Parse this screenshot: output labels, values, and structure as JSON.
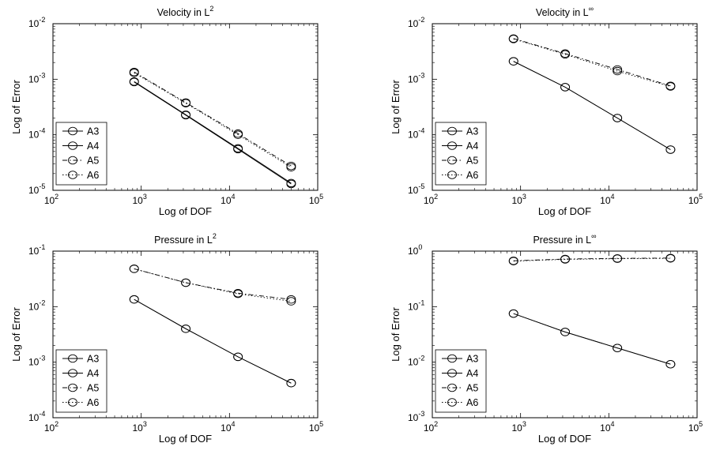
{
  "chart_data": [
    {
      "type": "line",
      "title": "Velocity in L",
      "title_sup": "2",
      "xlabel": "Log of DOF",
      "ylabel": "Log of Error",
      "xscale": "log",
      "yscale": "log",
      "xlim": [
        100,
        100000
      ],
      "ylim": [
        1e-05,
        0.01
      ],
      "x_ticks": [
        {
          "base": "10",
          "exp": "2"
        },
        {
          "base": "10",
          "exp": "3"
        },
        {
          "base": "10",
          "exp": "4"
        },
        {
          "base": "10",
          "exp": "5"
        }
      ],
      "y_ticks": [
        {
          "base": "10",
          "exp": "-5"
        },
        {
          "base": "10",
          "exp": "-4"
        },
        {
          "base": "10",
          "exp": "-3"
        },
        {
          "base": "10",
          "exp": "-2"
        }
      ],
      "legend_position": "lower-left",
      "x": [
        832,
        3200,
        12500,
        50000
      ],
      "series": [
        {
          "name": "A3",
          "style": "solid",
          "values": [
            0.00091,
            0.00023,
            5.7e-05,
            1.35e-05
          ]
        },
        {
          "name": "A4",
          "style": "solid",
          "values": [
            0.00089,
            0.000225,
            5.5e-05,
            1.3e-05
          ]
        },
        {
          "name": "A5",
          "style": "dashdot",
          "values": [
            0.00135,
            0.00038,
            0.000105,
            2.75e-05
          ]
        },
        {
          "name": "A6",
          "style": "dotted",
          "values": [
            0.0013,
            0.00037,
            0.0001,
            2.6e-05
          ]
        }
      ]
    },
    {
      "type": "line",
      "title": "Velocity in L",
      "title_sup": "∞",
      "xlabel": "Log of DOF",
      "ylabel": "Log of Error",
      "xscale": "log",
      "yscale": "log",
      "xlim": [
        100,
        100000
      ],
      "ylim": [
        1e-05,
        0.01
      ],
      "x_ticks": [
        {
          "base": "10",
          "exp": "2"
        },
        {
          "base": "10",
          "exp": "3"
        },
        {
          "base": "10",
          "exp": "4"
        },
        {
          "base": "10",
          "exp": "5"
        }
      ],
      "y_ticks": [
        {
          "base": "10",
          "exp": "-5"
        },
        {
          "base": "10",
          "exp": "-4"
        },
        {
          "base": "10",
          "exp": "-3"
        },
        {
          "base": "10",
          "exp": "-2"
        }
      ],
      "legend_position": "lower-left",
      "x": [
        832,
        3200,
        12500,
        50000
      ],
      "series": [
        {
          "name": "A3",
          "style": "solid",
          "values": [
            0.0021,
            0.00072,
            0.0002,
            5.4e-05
          ]
        },
        {
          "name": "A4",
          "style": "solid",
          "values": [
            0.0021,
            0.00072,
            0.0002,
            5.4e-05
          ]
        },
        {
          "name": "A5",
          "style": "dashdot",
          "values": [
            0.0054,
            0.0029,
            0.0015,
            0.00076
          ]
        },
        {
          "name": "A6",
          "style": "dotted",
          "values": [
            0.0053,
            0.0028,
            0.0014,
            0.00074
          ]
        }
      ]
    },
    {
      "type": "line",
      "title": "Pressure in L",
      "title_sup": "2",
      "xlabel": "Log of DOF",
      "ylabel": "Log of Error",
      "xscale": "log",
      "yscale": "log",
      "xlim": [
        100,
        100000
      ],
      "ylim": [
        0.0001,
        0.1
      ],
      "x_ticks": [
        {
          "base": "10",
          "exp": "2"
        },
        {
          "base": "10",
          "exp": "3"
        },
        {
          "base": "10",
          "exp": "4"
        },
        {
          "base": "10",
          "exp": "5"
        }
      ],
      "y_ticks": [
        {
          "base": "10",
          "exp": "-4"
        },
        {
          "base": "10",
          "exp": "-3"
        },
        {
          "base": "10",
          "exp": "-2"
        },
        {
          "base": "10",
          "exp": "-1"
        }
      ],
      "legend_position": "lower-left",
      "x": [
        832,
        3200,
        12500,
        50000
      ],
      "series": [
        {
          "name": "A3",
          "style": "solid",
          "values": [
            0.0135,
            0.004,
            0.00125,
            0.00042
          ]
        },
        {
          "name": "A4",
          "style": "solid",
          "values": [
            0.0135,
            0.004,
            0.00125,
            0.00042
          ]
        },
        {
          "name": "A5",
          "style": "dashdot",
          "values": [
            0.048,
            0.027,
            0.0175,
            0.0135
          ]
        },
        {
          "name": "A6",
          "style": "dotted",
          "values": [
            0.048,
            0.027,
            0.017,
            0.0125
          ]
        }
      ]
    },
    {
      "type": "line",
      "title": "Pressure in L",
      "title_sup": "∞",
      "xlabel": "Log of DOF",
      "ylabel": "Log of Error",
      "xscale": "log",
      "yscale": "log",
      "xlim": [
        100,
        100000
      ],
      "ylim": [
        0.001,
        1
      ],
      "x_ticks": [
        {
          "base": "10",
          "exp": "2"
        },
        {
          "base": "10",
          "exp": "3"
        },
        {
          "base": "10",
          "exp": "4"
        },
        {
          "base": "10",
          "exp": "5"
        }
      ],
      "y_ticks": [
        {
          "base": "10",
          "exp": "-3"
        },
        {
          "base": "10",
          "exp": "-2"
        },
        {
          "base": "10",
          "exp": "-1"
        },
        {
          "base": "10",
          "exp": "0"
        }
      ],
      "legend_position": "lower-left",
      "x": [
        832,
        3200,
        12500,
        50000
      ],
      "series": [
        {
          "name": "A3",
          "style": "solid",
          "values": [
            0.075,
            0.035,
            0.018,
            0.0092
          ]
        },
        {
          "name": "A4",
          "style": "solid",
          "values": [
            0.075,
            0.035,
            0.018,
            0.0092
          ]
        },
        {
          "name": "A5",
          "style": "dashdot",
          "values": [
            0.67,
            0.72,
            0.74,
            0.75
          ]
        },
        {
          "name": "A6",
          "style": "dotted",
          "values": [
            0.66,
            0.71,
            0.73,
            0.74
          ]
        }
      ]
    }
  ]
}
